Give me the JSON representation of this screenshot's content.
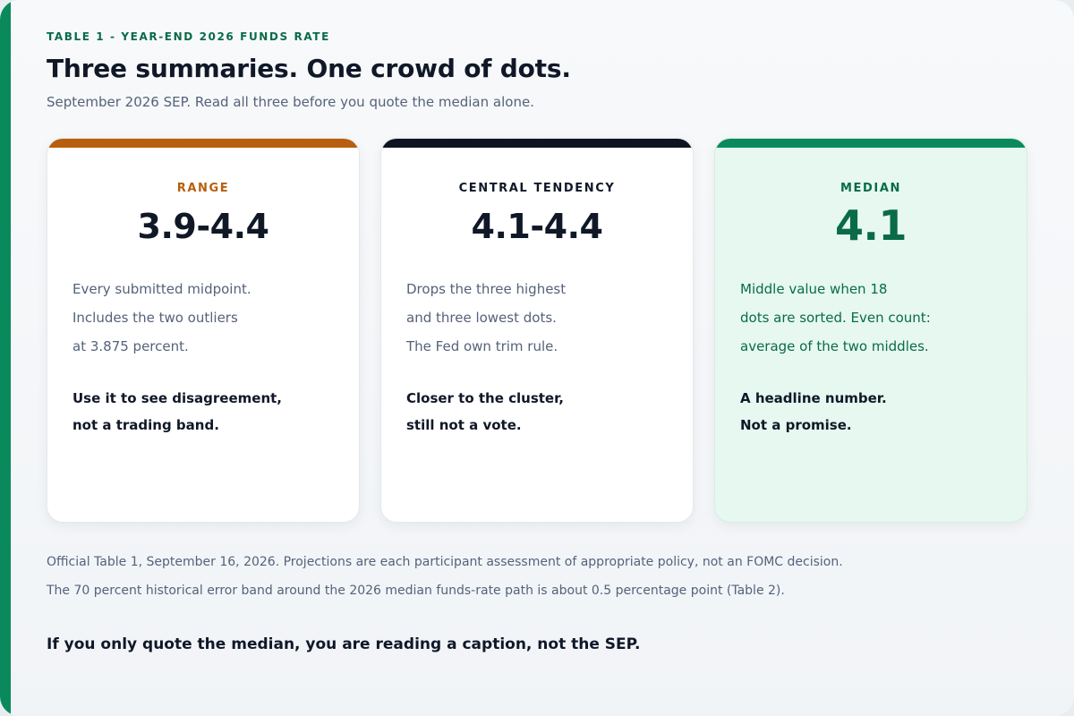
{
  "header": {
    "eyebrow": "TABLE 1 - YEAR-END 2026 FUNDS RATE",
    "title": "Three summaries. One crowd of dots.",
    "subtitle": "September 2026 SEP. Read all three before you quote the median alone."
  },
  "colors": {
    "accent_green": "#0a8a5c",
    "range_orange": "#b85e0c",
    "central_dark": "#0f1422",
    "median_bg": "#e6f8f0"
  },
  "cards": [
    {
      "label": "RANGE",
      "value": "3.9-4.4",
      "desc": [
        "Every submitted midpoint.",
        "Includes the two outliers",
        "at 3.875 percent."
      ],
      "note": [
        "Use it to see disagreement,",
        "not a trading band."
      ]
    },
    {
      "label": "CENTRAL TENDENCY",
      "value": "4.1-4.4",
      "desc": [
        "Drops the three highest",
        "and three lowest dots.",
        "The Fed own trim rule."
      ],
      "note": [
        "Closer to the cluster,",
        "still not a vote."
      ]
    },
    {
      "label": "MEDIAN",
      "value": "4.1",
      "desc": [
        "Middle value when 18",
        "dots are sorted. Even count:",
        "average of the two middles."
      ],
      "note": [
        "A headline number.",
        "Not a promise."
      ]
    }
  ],
  "footnotes": [
    "Official Table 1, September 16, 2026. Projections are each participant assessment of appropriate policy, not an FOMC decision.",
    "The 70 percent historical error band around the 2026 median funds-rate path is about 0.5 percentage point (Table 2)."
  ],
  "closing": "If you only quote the median, you are reading a caption, not the SEP."
}
